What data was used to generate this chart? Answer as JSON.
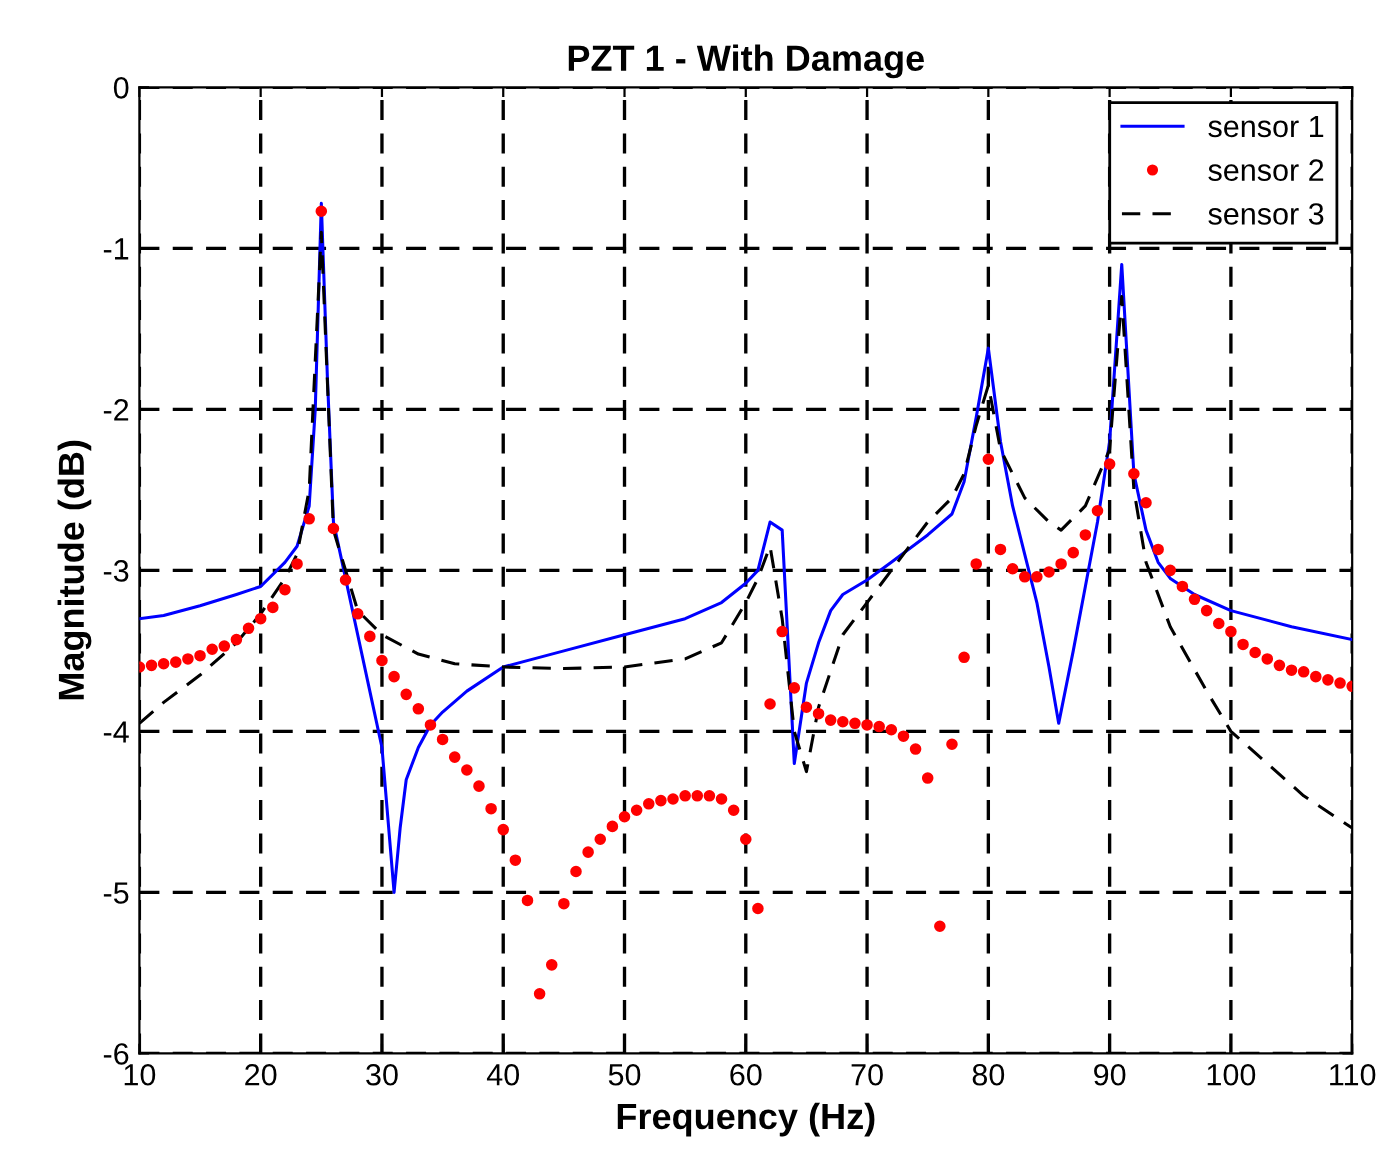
{
  "chart_data": {
    "type": "line",
    "title": "PZT 1 - With Damage",
    "xlabel": "Frequency (Hz)",
    "ylabel": "Magnitude (dB)",
    "xlim": [
      10,
      110
    ],
    "ylim": [
      -6,
      0
    ],
    "xticks": [
      10,
      20,
      30,
      40,
      50,
      60,
      70,
      80,
      90,
      100,
      110
    ],
    "yticks": [
      -6,
      -5,
      -4,
      -3,
      -2,
      -1,
      0
    ],
    "grid": true,
    "legend": "top right",
    "series": [
      {
        "name": "sensor 1",
        "color": "#0000ff",
        "line_style": "solid",
        "marker": "none",
        "x": [
          10,
          12,
          15,
          18,
          20,
          22,
          23,
          24,
          24.5,
          25,
          25.5,
          26,
          27,
          28,
          29,
          30,
          31,
          31.5,
          32,
          33,
          34,
          35,
          37,
          40,
          45,
          50,
          55,
          58,
          60,
          61,
          62,
          63,
          64,
          65,
          66,
          67,
          68,
          70,
          72,
          75,
          77,
          78,
          79,
          80,
          81,
          82,
          83,
          84,
          85,
          85.8,
          87,
          88,
          89,
          90,
          91,
          92,
          93,
          94,
          95,
          97,
          100,
          105,
          110
        ],
        "values": [
          -3.3,
          -3.28,
          -3.22,
          -3.15,
          -3.1,
          -2.95,
          -2.85,
          -2.6,
          -2.0,
          -0.72,
          -1.8,
          -2.7,
          -3.05,
          -3.4,
          -3.75,
          -4.1,
          -5.0,
          -4.6,
          -4.3,
          -4.1,
          -3.96,
          -3.88,
          -3.75,
          -3.6,
          -3.5,
          -3.4,
          -3.3,
          -3.2,
          -3.08,
          -3.0,
          -2.7,
          -2.75,
          -4.2,
          -3.7,
          -3.45,
          -3.25,
          -3.15,
          -3.06,
          -2.95,
          -2.78,
          -2.65,
          -2.45,
          -2.05,
          -1.62,
          -2.2,
          -2.6,
          -2.9,
          -3.2,
          -3.6,
          -3.95,
          -3.5,
          -3.1,
          -2.7,
          -2.2,
          -1.1,
          -2.4,
          -2.75,
          -2.95,
          -3.05,
          -3.15,
          -3.25,
          -3.35,
          -3.43
        ]
      },
      {
        "name": "sensor 2",
        "color": "#ff0000",
        "type": "scatter",
        "marker": "circle",
        "x": [
          10,
          11,
          12,
          13,
          14,
          15,
          16,
          17,
          18,
          19,
          20,
          21,
          22,
          23,
          24,
          25,
          26,
          27,
          28,
          29,
          30,
          31,
          32,
          33,
          34,
          35,
          36,
          37,
          38,
          39,
          40,
          41,
          42,
          43,
          44,
          45,
          46,
          47,
          48,
          49,
          50,
          51,
          52,
          53,
          54,
          55,
          56,
          57,
          58,
          59,
          60,
          61,
          62,
          63,
          64,
          65,
          66,
          67,
          68,
          69,
          70,
          71,
          72,
          73,
          74,
          75,
          76,
          77,
          78,
          79,
          80,
          81,
          82,
          83,
          84,
          85,
          86,
          87,
          88,
          89,
          90,
          92,
          93,
          94,
          95,
          96,
          97,
          98,
          99,
          100,
          101,
          102,
          103,
          104,
          105,
          106,
          107,
          108,
          109,
          110
        ],
        "values": [
          -3.6,
          -3.59,
          -3.58,
          -3.57,
          -3.55,
          -3.53,
          -3.49,
          -3.47,
          -3.43,
          -3.36,
          -3.3,
          -3.23,
          -3.12,
          -2.96,
          -2.68,
          -0.77,
          -2.74,
          -3.06,
          -3.27,
          -3.41,
          -3.56,
          -3.66,
          -3.77,
          -3.86,
          -3.96,
          -4.05,
          -4.16,
          -4.24,
          -4.34,
          -4.48,
          -4.61,
          -4.8,
          -5.05,
          -5.63,
          -5.45,
          -5.07,
          -4.87,
          -4.75,
          -4.67,
          -4.59,
          -4.53,
          -4.49,
          -4.45,
          -4.43,
          -4.42,
          -4.4,
          -4.4,
          -4.4,
          -4.42,
          -4.49,
          -4.67,
          -5.1,
          -3.83,
          -3.38,
          -3.73,
          -3.85,
          -3.89,
          -3.93,
          -3.94,
          -3.95,
          -3.96,
          -3.97,
          -3.99,
          -4.03,
          -4.11,
          -4.29,
          -5.21,
          -4.08,
          -3.54,
          -2.96,
          -2.31,
          -2.87,
          -2.99,
          -3.04,
          -3.04,
          -3.01,
          -2.96,
          -2.89,
          -2.78,
          -2.63,
          -2.34,
          -2.4,
          -2.58,
          -2.87,
          -3.0,
          -3.1,
          -3.18,
          -3.25,
          -3.33,
          -3.38,
          -3.46,
          -3.51,
          -3.55,
          -3.59,
          -3.62,
          -3.63,
          -3.66,
          -3.68,
          -3.7,
          -3.72
        ]
      },
      {
        "name": "sensor 3",
        "color": "#000000",
        "line_style": "dashed",
        "marker": "none",
        "x": [
          10,
          12,
          15,
          18,
          20,
          22,
          23,
          24,
          25,
          26,
          28,
          30,
          33,
          36,
          40,
          45,
          50,
          55,
          58,
          60,
          61,
          62,
          63,
          64,
          65,
          66,
          68,
          70,
          72,
          75,
          77,
          78,
          79,
          80,
          81,
          83,
          85,
          86,
          88,
          90,
          91,
          92,
          93,
          95,
          98,
          100,
          103,
          106,
          110
        ],
        "values": [
          -3.95,
          -3.82,
          -3.65,
          -3.45,
          -3.27,
          -3.05,
          -2.9,
          -2.5,
          -0.9,
          -2.75,
          -3.25,
          -3.4,
          -3.52,
          -3.58,
          -3.6,
          -3.61,
          -3.6,
          -3.55,
          -3.45,
          -3.2,
          -3.05,
          -2.85,
          -3.3,
          -4.0,
          -4.25,
          -3.85,
          -3.4,
          -3.2,
          -3.0,
          -2.7,
          -2.55,
          -2.4,
          -2.1,
          -1.85,
          -2.25,
          -2.55,
          -2.7,
          -2.75,
          -2.6,
          -2.25,
          -1.3,
          -2.5,
          -2.95,
          -3.35,
          -3.75,
          -4.0,
          -4.2,
          -4.4,
          -4.6
        ]
      }
    ]
  }
}
